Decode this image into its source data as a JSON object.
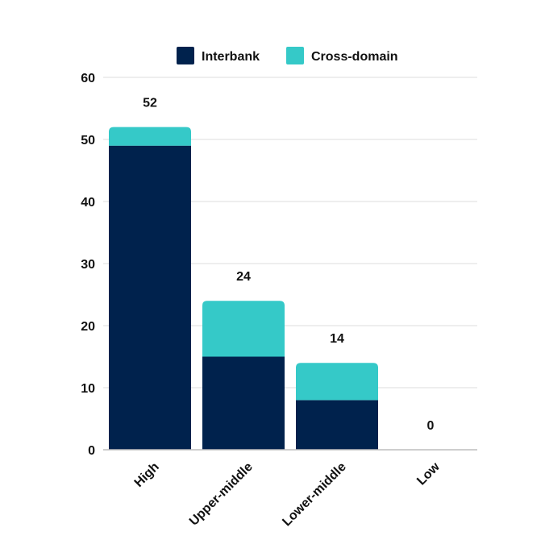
{
  "chart_data": {
    "type": "bar",
    "stacked": true,
    "categories": [
      "High",
      "Upper-middle",
      "Lower-middle",
      "Low"
    ],
    "series": [
      {
        "name": "Interbank",
        "values": [
          49,
          15,
          8,
          0
        ],
        "color": "#00224d"
      },
      {
        "name": "Cross-domain",
        "values": [
          3,
          9,
          6,
          0
        ],
        "color": "#35c9c8"
      }
    ],
    "totals": [
      "52",
      "24",
      "14",
      "0"
    ],
    "ylim": [
      0,
      60
    ],
    "yticks": [
      "0",
      "10",
      "20",
      "30",
      "40",
      "50",
      "60"
    ],
    "grid": true,
    "legend": "top-center"
  }
}
